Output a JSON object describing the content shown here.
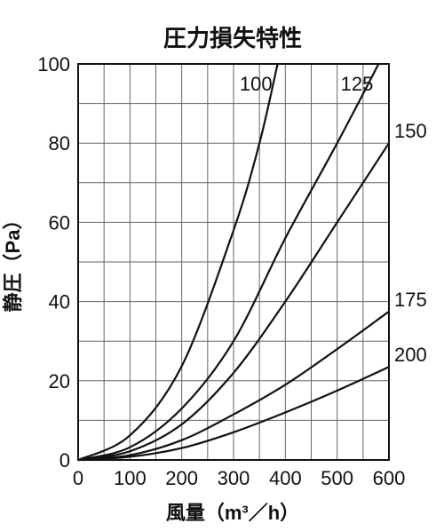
{
  "chart_data": {
    "type": "line",
    "title": "圧力損失特性",
    "xlabel": "風量（m³／h）",
    "ylabel": "静圧（Pa）",
    "xlim": [
      0,
      600
    ],
    "ylim": [
      0,
      100
    ],
    "xticks": [
      "0",
      "100",
      "200",
      "300",
      "400",
      "500",
      "600"
    ],
    "yticks": [
      "0",
      "20",
      "40",
      "60",
      "80",
      "100"
    ],
    "grid": true,
    "series": [
      {
        "name": "100",
        "points": [
          [
            0,
            0
          ],
          [
            100,
            6.2
          ],
          [
            200,
            23.7
          ],
          [
            300,
            58
          ],
          [
            350,
            80
          ],
          [
            385,
            100
          ]
        ]
      },
      {
        "name": "125",
        "points": [
          [
            0,
            0
          ],
          [
            100,
            3.2
          ],
          [
            200,
            13
          ],
          [
            300,
            30
          ],
          [
            400,
            56
          ],
          [
            500,
            80
          ],
          [
            580,
            100
          ]
        ]
      },
      {
        "name": "150",
        "points": [
          [
            0,
            0
          ],
          [
            100,
            2.2
          ],
          [
            200,
            9
          ],
          [
            300,
            22
          ],
          [
            400,
            40
          ],
          [
            500,
            60
          ],
          [
            600,
            80
          ]
        ]
      },
      {
        "name": "175",
        "points": [
          [
            0,
            0
          ],
          [
            100,
            1.2
          ],
          [
            200,
            5
          ],
          [
            300,
            11.5
          ],
          [
            400,
            19
          ],
          [
            500,
            28
          ],
          [
            600,
            37.5
          ]
        ]
      },
      {
        "name": "200",
        "points": [
          [
            0,
            0
          ],
          [
            100,
            0.8
          ],
          [
            200,
            3
          ],
          [
            300,
            7
          ],
          [
            400,
            12
          ],
          [
            500,
            17.5
          ],
          [
            600,
            23.5
          ]
        ]
      }
    ]
  }
}
